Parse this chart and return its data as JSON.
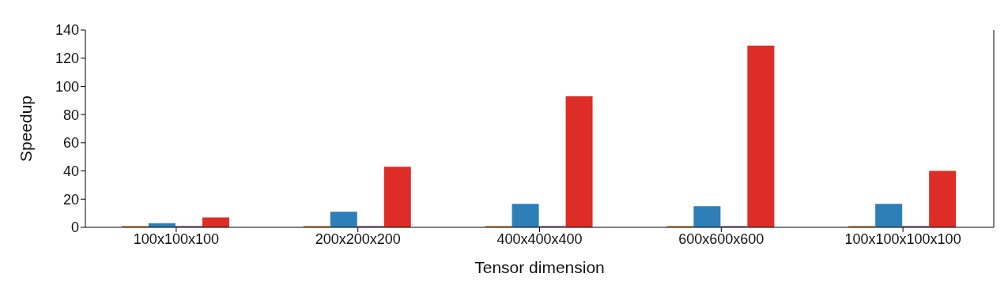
{
  "chart_data": {
    "type": "bar",
    "xlabel": "Tensor dimension",
    "ylabel": "Speedup",
    "categories": [
      "100x100x100",
      "200x200x200",
      "400x400x400",
      "600x600x600",
      "100x100x100x100"
    ],
    "series": [
      {
        "color": "#c8802a",
        "values": [
          1,
          1,
          1,
          1,
          1
        ]
      },
      {
        "color": "#2e7fb8",
        "values": [
          3,
          11,
          16.6,
          15,
          16.6
        ]
      },
      {
        "color": "#8a5a9a",
        "values": [
          1,
          1,
          1,
          1,
          1
        ]
      },
      {
        "color": "#de2d26",
        "values": [
          7,
          43,
          93,
          129,
          40
        ]
      }
    ],
    "ylim": [
      0,
      140
    ],
    "yticks": [
      0,
      20,
      40,
      60,
      80,
      100,
      120,
      140
    ],
    "grid": false,
    "legend": false
  }
}
